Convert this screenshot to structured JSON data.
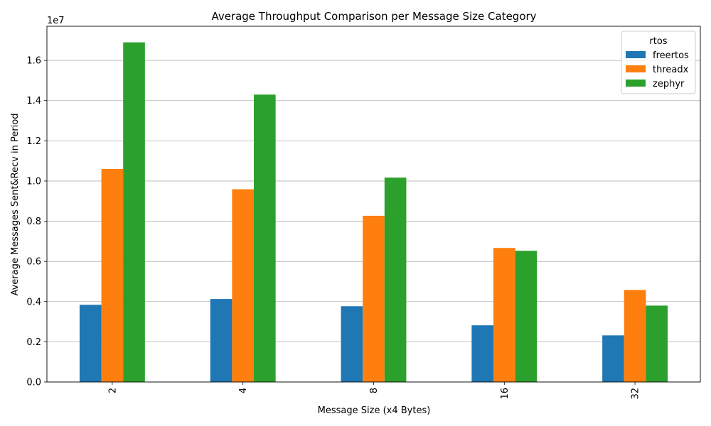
{
  "chart_data": {
    "type": "bar",
    "title": "Average Throughput Comparison per Message Size Category",
    "xlabel": "Message Size (x4 Bytes)",
    "ylabel": "Average Messages Sent&Recv in Period",
    "y_offset_label": "1e7",
    "categories": [
      "2",
      "4",
      "8",
      "16",
      "32"
    ],
    "series": [
      {
        "name": "freertos",
        "color": "#1f77b4",
        "values": [
          3840000,
          4130000,
          3770000,
          2820000,
          2320000
        ]
      },
      {
        "name": "threadx",
        "color": "#ff7f0e",
        "values": [
          10600000,
          9590000,
          8270000,
          6670000,
          4580000
        ]
      },
      {
        "name": "zephyr",
        "color": "#2ca02c",
        "values": [
          16900000,
          14300000,
          10170000,
          6530000,
          3800000
        ]
      }
    ],
    "yticks": [
      {
        "value": 0,
        "label": "0.0"
      },
      {
        "value": 2000000,
        "label": "0.2"
      },
      {
        "value": 4000000,
        "label": "0.4"
      },
      {
        "value": 6000000,
        "label": "0.6"
      },
      {
        "value": 8000000,
        "label": "0.8"
      },
      {
        "value": 10000000,
        "label": "1.0"
      },
      {
        "value": 12000000,
        "label": "1.2"
      },
      {
        "value": 14000000,
        "label": "1.4"
      },
      {
        "value": 16000000,
        "label": "1.6"
      }
    ],
    "ylim": [
      0,
      17700000
    ],
    "grid": "y",
    "legend": {
      "title": "rtos",
      "position": "top-right"
    }
  }
}
